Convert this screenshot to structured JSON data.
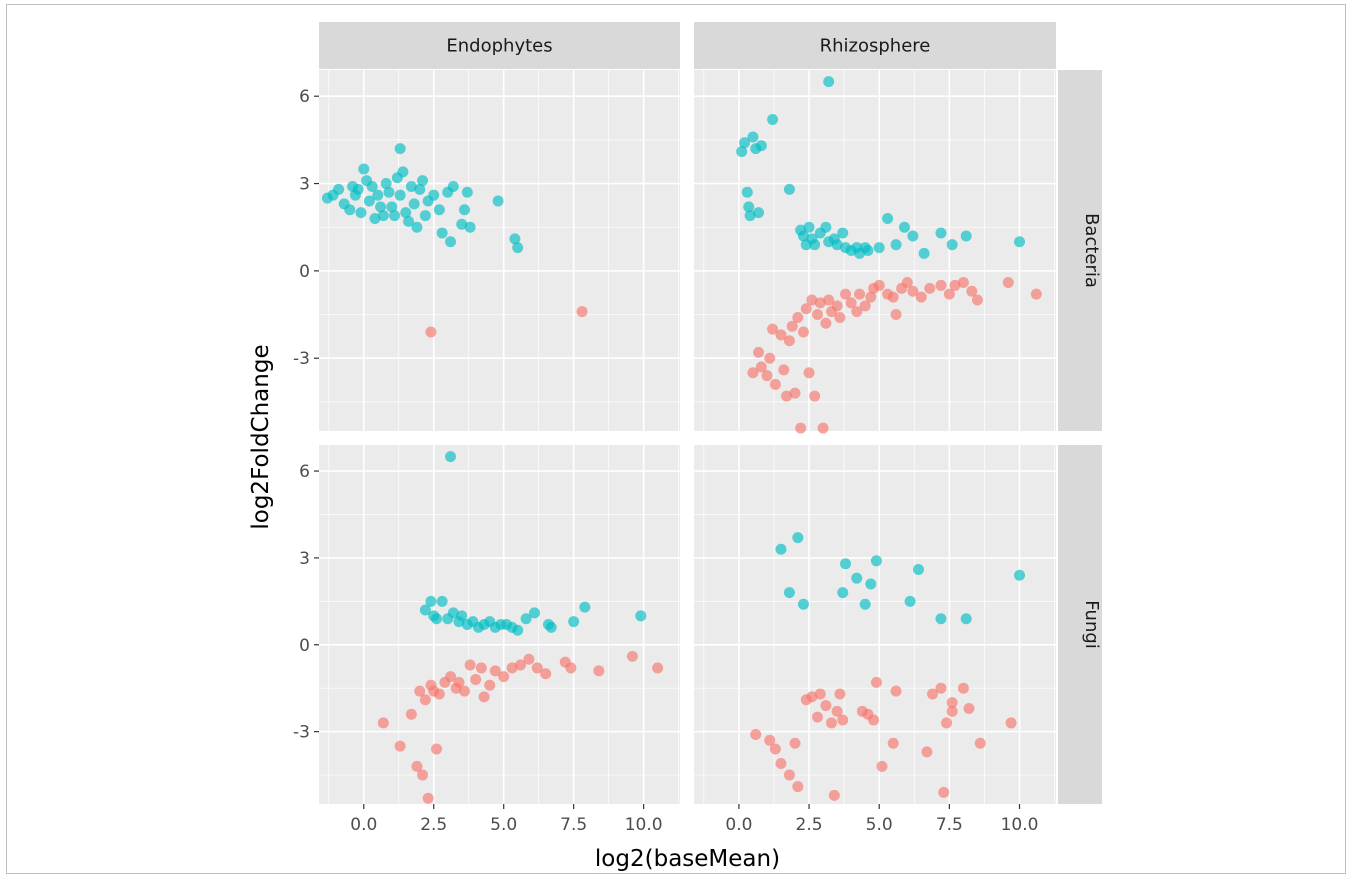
{
  "chart_data": {
    "type": "scatter",
    "xlabel": "log2(baseMean)",
    "ylabel": "log2FoldChange",
    "col_facets": [
      "Endophytes",
      "Rhizosphere"
    ],
    "row_facets": [
      "Bacteria",
      "Fungi"
    ],
    "xlim": [
      -1.6,
      11.3
    ],
    "ylim": [
      -5.5,
      6.9
    ],
    "x_ticks": [
      0.0,
      2.5,
      5.0,
      7.5,
      10.0
    ],
    "x_tick_labels": [
      "0.0",
      "2.5",
      "5.0",
      "7.5",
      "10.0"
    ],
    "y_ticks": [
      6,
      3,
      0,
      -3
    ],
    "y_tick_labels": [
      "6",
      "3",
      "0",
      "-3"
    ],
    "grid": true,
    "legend": "none",
    "colors": {
      "up": "#00BFC4",
      "down": "#F8766D",
      "panel_bg": "#EBEBEB",
      "strip_bg": "#D9D9D9",
      "grid": "#FFFFFF"
    },
    "panels": [
      {
        "col": "Endophytes",
        "row": "Bacteria",
        "up": [
          [
            -1.3,
            2.5
          ],
          [
            -1.1,
            2.6
          ],
          [
            -0.9,
            2.8
          ],
          [
            -0.7,
            2.3
          ],
          [
            -0.5,
            2.1
          ],
          [
            -0.4,
            2.9
          ],
          [
            -0.3,
            2.6
          ],
          [
            -0.2,
            2.8
          ],
          [
            -0.1,
            2.0
          ],
          [
            0,
            3.5
          ],
          [
            0.1,
            3.1
          ],
          [
            0.2,
            2.4
          ],
          [
            0.3,
            2.9
          ],
          [
            0.4,
            1.8
          ],
          [
            0.5,
            2.6
          ],
          [
            0.6,
            2.2
          ],
          [
            0.7,
            1.9
          ],
          [
            0.8,
            3.0
          ],
          [
            0.9,
            2.7
          ],
          [
            1.0,
            2.2
          ],
          [
            1.1,
            1.9
          ],
          [
            1.2,
            3.2
          ],
          [
            1.3,
            2.6
          ],
          [
            1.3,
            4.2
          ],
          [
            1.4,
            3.4
          ],
          [
            1.5,
            2.0
          ],
          [
            1.6,
            1.7
          ],
          [
            1.7,
            2.9
          ],
          [
            1.8,
            2.3
          ],
          [
            1.9,
            1.5
          ],
          [
            2.0,
            2.8
          ],
          [
            2.1,
            3.1
          ],
          [
            2.2,
            1.9
          ],
          [
            2.3,
            2.4
          ],
          [
            2.5,
            2.6
          ],
          [
            2.7,
            2.1
          ],
          [
            2.8,
            1.3
          ],
          [
            3.0,
            2.7
          ],
          [
            3.1,
            1.0
          ],
          [
            3.2,
            2.9
          ],
          [
            3.5,
            1.6
          ],
          [
            3.6,
            2.1
          ],
          [
            3.7,
            2.7
          ],
          [
            3.8,
            1.5
          ],
          [
            4.8,
            2.4
          ],
          [
            5.4,
            1.1
          ],
          [
            5.5,
            0.8
          ]
        ],
        "down": [
          [
            2.4,
            -2.1
          ],
          [
            7.8,
            -1.4
          ]
        ]
      },
      {
        "col": "Rhizosphere",
        "row": "Bacteria",
        "up": [
          [
            0.1,
            4.1
          ],
          [
            0.2,
            4.4
          ],
          [
            0.3,
            2.7
          ],
          [
            0.35,
            2.2
          ],
          [
            0.4,
            1.9
          ],
          [
            0.5,
            4.6
          ],
          [
            0.6,
            4.2
          ],
          [
            0.7,
            2.0
          ],
          [
            0.8,
            4.3
          ],
          [
            1.2,
            5.2
          ],
          [
            1.8,
            2.8
          ],
          [
            2.2,
            1.4
          ],
          [
            2.3,
            1.2
          ],
          [
            2.4,
            0.9
          ],
          [
            2.5,
            1.5
          ],
          [
            2.6,
            1.1
          ],
          [
            2.7,
            0.9
          ],
          [
            2.9,
            1.3
          ],
          [
            3.1,
            1.5
          ],
          [
            3.2,
            1.0
          ],
          [
            3.4,
            1.1
          ],
          [
            3.5,
            0.9
          ],
          [
            3.7,
            1.3
          ],
          [
            3.8,
            0.8
          ],
          [
            4.0,
            0.7
          ],
          [
            4.2,
            0.8
          ],
          [
            4.3,
            0.6
          ],
          [
            4.5,
            0.8
          ],
          [
            4.6,
            0.7
          ],
          [
            5.0,
            0.8
          ],
          [
            5.3,
            1.8
          ],
          [
            5.6,
            0.9
          ],
          [
            5.9,
            1.5
          ],
          [
            6.2,
            1.2
          ],
          [
            6.6,
            0.6
          ],
          [
            7.2,
            1.3
          ],
          [
            7.6,
            0.9
          ],
          [
            8.1,
            1.2
          ],
          [
            10.0,
            1.0
          ],
          [
            3.2,
            6.5
          ]
        ],
        "down": [
          [
            0.5,
            -3.5
          ],
          [
            0.7,
            -2.8
          ],
          [
            0.8,
            -3.3
          ],
          [
            1.0,
            -3.6
          ],
          [
            1.1,
            -3.0
          ],
          [
            1.2,
            -2.0
          ],
          [
            1.3,
            -3.9
          ],
          [
            1.5,
            -2.2
          ],
          [
            1.6,
            -3.4
          ],
          [
            1.7,
            -4.3
          ],
          [
            1.8,
            -2.4
          ],
          [
            1.9,
            -1.9
          ],
          [
            2.0,
            -4.2
          ],
          [
            2.1,
            -1.6
          ],
          [
            2.2,
            -5.4
          ],
          [
            2.3,
            -2.1
          ],
          [
            2.4,
            -1.3
          ],
          [
            2.5,
            -3.5
          ],
          [
            2.6,
            -1.0
          ],
          [
            2.7,
            -4.3
          ],
          [
            2.8,
            -1.5
          ],
          [
            2.9,
            -1.1
          ],
          [
            3.0,
            -5.4
          ],
          [
            3.1,
            -1.8
          ],
          [
            3.2,
            -1.0
          ],
          [
            3.3,
            -1.4
          ],
          [
            3.5,
            -1.2
          ],
          [
            3.6,
            -1.6
          ],
          [
            3.8,
            -0.8
          ],
          [
            4.0,
            -1.1
          ],
          [
            4.2,
            -1.4
          ],
          [
            4.3,
            -0.8
          ],
          [
            4.5,
            -1.2
          ],
          [
            4.7,
            -0.9
          ],
          [
            4.8,
            -0.6
          ],
          [
            5.0,
            -0.5
          ],
          [
            5.3,
            -0.8
          ],
          [
            5.5,
            -0.9
          ],
          [
            5.6,
            -1.5
          ],
          [
            5.8,
            -0.6
          ],
          [
            6.0,
            -0.4
          ],
          [
            6.2,
            -0.7
          ],
          [
            6.5,
            -0.9
          ],
          [
            6.8,
            -0.6
          ],
          [
            7.2,
            -0.5
          ],
          [
            7.5,
            -0.8
          ],
          [
            7.7,
            -0.5
          ],
          [
            8.0,
            -0.4
          ],
          [
            8.3,
            -0.7
          ],
          [
            8.5,
            -1.0
          ],
          [
            9.6,
            -0.4
          ],
          [
            10.6,
            -0.8
          ]
        ]
      },
      {
        "col": "Endophytes",
        "row": "Fungi",
        "up": [
          [
            2.2,
            1.2
          ],
          [
            2.4,
            1.5
          ],
          [
            2.5,
            1.0
          ],
          [
            2.6,
            0.9
          ],
          [
            2.8,
            1.5
          ],
          [
            3.0,
            0.9
          ],
          [
            3.2,
            1.1
          ],
          [
            3.4,
            0.8
          ],
          [
            3.5,
            1.0
          ],
          [
            3.7,
            0.7
          ],
          [
            3.9,
            0.8
          ],
          [
            4.1,
            0.6
          ],
          [
            4.3,
            0.7
          ],
          [
            4.5,
            0.8
          ],
          [
            4.7,
            0.6
          ],
          [
            4.9,
            0.7
          ],
          [
            5.1,
            0.7
          ],
          [
            5.3,
            0.6
          ],
          [
            5.5,
            0.5
          ],
          [
            5.8,
            0.9
          ],
          [
            6.1,
            1.1
          ],
          [
            6.6,
            0.7
          ],
          [
            6.7,
            0.6
          ],
          [
            7.5,
            0.8
          ],
          [
            7.9,
            1.3
          ],
          [
            9.9,
            1.0
          ],
          [
            3.1,
            6.5
          ]
        ],
        "down": [
          [
            0.7,
            -2.7
          ],
          [
            1.3,
            -3.5
          ],
          [
            1.7,
            -2.4
          ],
          [
            1.9,
            -4.2
          ],
          [
            2.0,
            -1.6
          ],
          [
            2.1,
            -4.5
          ],
          [
            2.2,
            -1.9
          ],
          [
            2.3,
            -5.3
          ],
          [
            2.4,
            -1.4
          ],
          [
            2.5,
            -1.6
          ],
          [
            2.6,
            -3.6
          ],
          [
            2.7,
            -1.7
          ],
          [
            2.9,
            -1.3
          ],
          [
            3.1,
            -1.1
          ],
          [
            3.3,
            -1.5
          ],
          [
            3.4,
            -1.3
          ],
          [
            3.6,
            -1.6
          ],
          [
            3.8,
            -0.7
          ],
          [
            4.0,
            -1.2
          ],
          [
            4.2,
            -0.8
          ],
          [
            4.3,
            -1.8
          ],
          [
            4.5,
            -1.4
          ],
          [
            4.7,
            -0.9
          ],
          [
            5.0,
            -1.1
          ],
          [
            5.3,
            -0.8
          ],
          [
            5.6,
            -0.7
          ],
          [
            5.9,
            -0.5
          ],
          [
            6.2,
            -0.8
          ],
          [
            6.5,
            -1.0
          ],
          [
            7.2,
            -0.6
          ],
          [
            7.4,
            -0.8
          ],
          [
            8.4,
            -0.9
          ],
          [
            9.6,
            -0.4
          ],
          [
            10.5,
            -0.8
          ]
        ]
      },
      {
        "col": "Rhizosphere",
        "row": "Fungi",
        "up": [
          [
            1.5,
            3.3
          ],
          [
            1.8,
            1.8
          ],
          [
            2.1,
            3.7
          ],
          [
            2.3,
            1.4
          ],
          [
            3.7,
            1.8
          ],
          [
            3.8,
            2.8
          ],
          [
            4.2,
            2.3
          ],
          [
            4.5,
            1.4
          ],
          [
            4.7,
            2.1
          ],
          [
            4.9,
            2.9
          ],
          [
            6.1,
            1.5
          ],
          [
            6.4,
            2.6
          ],
          [
            7.2,
            0.9
          ],
          [
            8.1,
            0.9
          ],
          [
            10.0,
            2.4
          ]
        ],
        "down": [
          [
            0.6,
            -3.1
          ],
          [
            1.1,
            -3.3
          ],
          [
            1.3,
            -3.6
          ],
          [
            1.5,
            -4.1
          ],
          [
            1.8,
            -4.5
          ],
          [
            2.0,
            -3.4
          ],
          [
            2.1,
            -4.9
          ],
          [
            2.4,
            -1.9
          ],
          [
            2.6,
            -1.8
          ],
          [
            2.8,
            -2.5
          ],
          [
            2.9,
            -1.7
          ],
          [
            3.1,
            -2.1
          ],
          [
            3.3,
            -2.7
          ],
          [
            3.5,
            -2.3
          ],
          [
            3.6,
            -1.7
          ],
          [
            3.7,
            -2.6
          ],
          [
            3.4,
            -5.2
          ],
          [
            4.4,
            -2.3
          ],
          [
            4.6,
            -2.4
          ],
          [
            4.9,
            -1.3
          ],
          [
            4.8,
            -2.6
          ],
          [
            5.1,
            -4.2
          ],
          [
            5.5,
            -3.4
          ],
          [
            5.6,
            -1.6
          ],
          [
            6.7,
            -3.7
          ],
          [
            6.9,
            -1.7
          ],
          [
            7.2,
            -1.5
          ],
          [
            7.3,
            -5.1
          ],
          [
            7.4,
            -2.7
          ],
          [
            7.6,
            -2.0
          ],
          [
            7.6,
            -2.3
          ],
          [
            8.0,
            -1.5
          ],
          [
            8.2,
            -2.2
          ],
          [
            8.6,
            -3.4
          ],
          [
            9.7,
            -2.7
          ]
        ]
      }
    ]
  }
}
